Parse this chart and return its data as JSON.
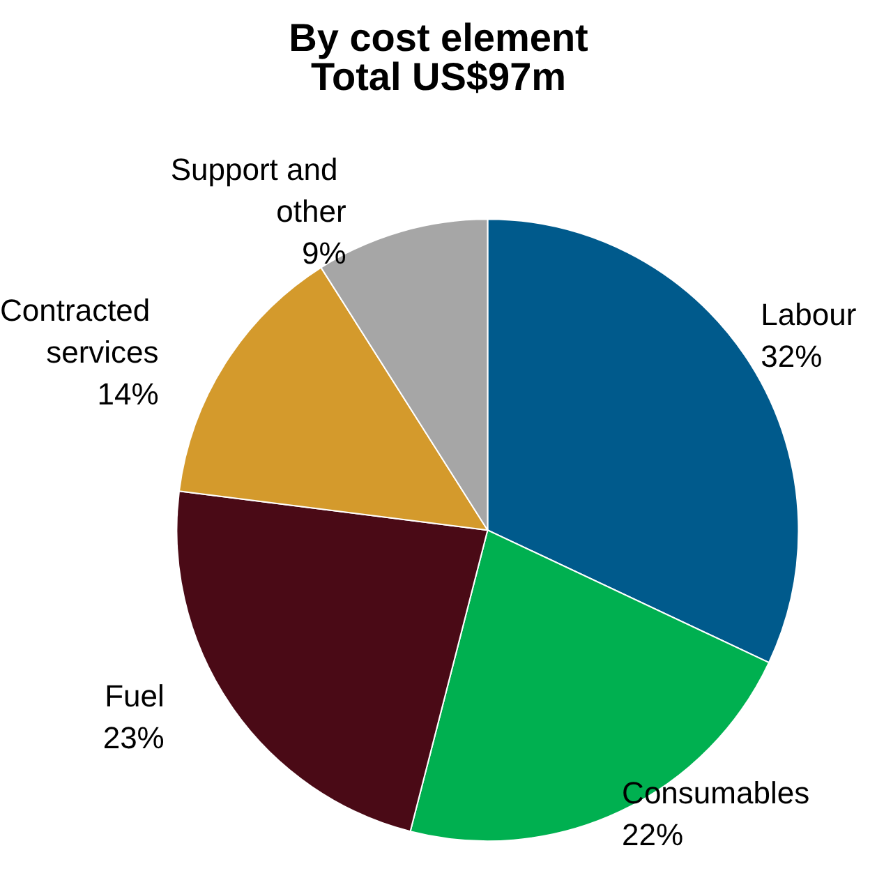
{
  "chart_data": {
    "type": "pie",
    "title": "By cost element",
    "subtitle": "Total US$97m",
    "categories": [
      "Labour",
      "Consumables",
      "Fuel",
      "Contracted services",
      "Support and other"
    ],
    "values": [
      32,
      22,
      23,
      14,
      9
    ],
    "colors": [
      "#005a8c",
      "#00b050",
      "#4a0a16",
      "#d49a2c",
      "#a6a6a6"
    ],
    "value_labels": [
      "32%",
      "22%",
      "23%",
      "14%",
      "9%"
    ],
    "legend": false
  }
}
